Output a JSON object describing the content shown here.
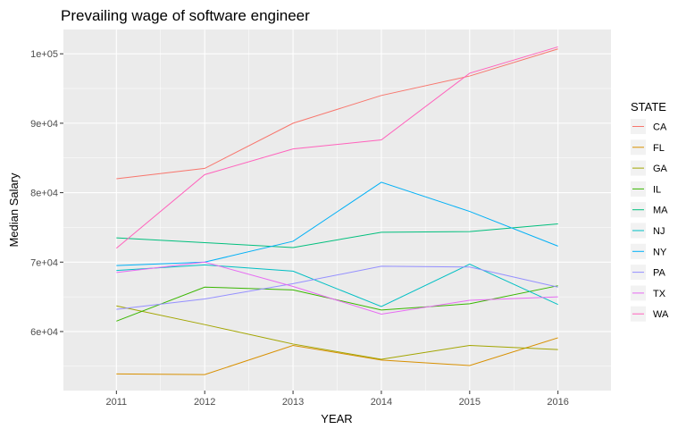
{
  "chart_data": {
    "type": "line",
    "title": "Prevailing wage of software engineer",
    "xlabel": "YEAR",
    "ylabel": "Median Salary",
    "x": [
      2011,
      2012,
      2013,
      2014,
      2015,
      2016
    ],
    "xlim": [
      2010.4,
      2016.6
    ],
    "ylim": [
      51500,
      103500
    ],
    "yticks": [
      60000,
      70000,
      80000,
      90000,
      100000
    ],
    "ytick_labels": [
      "6e+04",
      "7e+04",
      "8e+04",
      "9e+04",
      "1e+05"
    ],
    "grid": true,
    "legend": {
      "title": "STATE",
      "position": "right"
    },
    "series": [
      {
        "name": "CA",
        "color": "#F8766D",
        "values": [
          82000,
          83500,
          90000,
          94000,
          96800,
          100700
        ]
      },
      {
        "name": "FL",
        "color": "#D89000",
        "values": [
          53900,
          53800,
          58000,
          55900,
          55100,
          59100
        ]
      },
      {
        "name": "GA",
        "color": "#A3A500",
        "values": [
          63700,
          61000,
          58200,
          56000,
          58000,
          57400
        ]
      },
      {
        "name": "IL",
        "color": "#39B600",
        "values": [
          61500,
          66400,
          66000,
          63100,
          64000,
          66600
        ]
      },
      {
        "name": "MA",
        "color": "#00BF7D",
        "values": [
          73500,
          72800,
          72100,
          74300,
          74400,
          75500
        ]
      },
      {
        "name": "NJ",
        "color": "#00BFC4",
        "values": [
          68800,
          69600,
          68700,
          63600,
          69700,
          63900
        ]
      },
      {
        "name": "NY",
        "color": "#00B0F6",
        "values": [
          69500,
          70000,
          73000,
          81500,
          77300,
          72300
        ]
      },
      {
        "name": "PA",
        "color": "#9590FF",
        "values": [
          63200,
          64700,
          66900,
          69400,
          69300,
          66400
        ]
      },
      {
        "name": "TX",
        "color": "#E76BF3",
        "values": [
          68500,
          70000,
          66500,
          62500,
          64500,
          65000
        ]
      },
      {
        "name": "WA",
        "color": "#FF62BC",
        "values": [
          72000,
          82600,
          86300,
          87600,
          97200,
          101000
        ]
      }
    ]
  }
}
